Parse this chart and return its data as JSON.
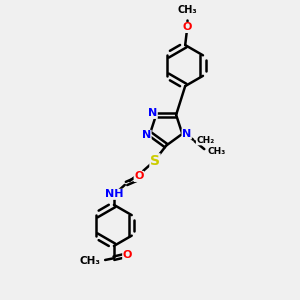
{
  "bg_color": "#f0f0f0",
  "bond_color": "#000000",
  "bond_width": 1.8,
  "atom_colors": {
    "N": "#0000FF",
    "O": "#FF0000",
    "S": "#CCCC00",
    "C": "#000000",
    "H": "#5F9EA0"
  },
  "font_size": 8,
  "fig_width": 3.0,
  "fig_height": 3.0,
  "xlim": [
    0,
    10
  ],
  "ylim": [
    0,
    10
  ]
}
